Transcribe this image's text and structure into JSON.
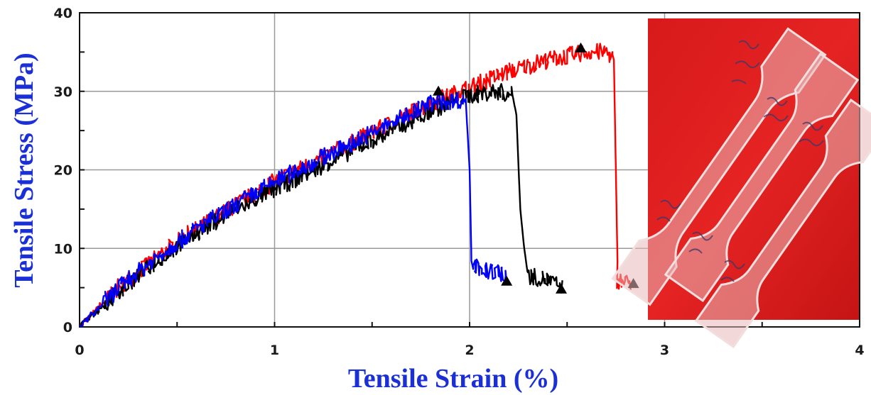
{
  "chart_data": {
    "type": "line",
    "title": "",
    "xlabel": "Tensile Strain (%)",
    "ylabel": "Tensile Stress (MPa)",
    "xlim": [
      0,
      4
    ],
    "ylim": [
      0,
      40
    ],
    "x_ticks": [
      0,
      1,
      2,
      3,
      4
    ],
    "y_ticks": [
      0,
      10,
      20,
      30,
      40
    ],
    "x_tick_labels": [
      "0",
      "1",
      "2",
      "3",
      "4"
    ],
    "y_tick_labels": [
      "0",
      "10",
      "20",
      "30",
      "40"
    ],
    "grid": true,
    "legend": "none",
    "inset": "photograph of three tensile test specimens (dog-bone shaped) on a red background",
    "series": [
      {
        "color": "#ff0000",
        "points": [
          [
            0,
            0
          ],
          [
            0.2,
            5
          ],
          [
            0.4,
            9
          ],
          [
            0.6,
            12.5
          ],
          [
            0.8,
            15.5
          ],
          [
            1.0,
            18.5
          ],
          [
            1.2,
            21
          ],
          [
            1.4,
            23.5
          ],
          [
            1.6,
            26
          ],
          [
            1.8,
            28.5
          ],
          [
            2.0,
            30.5
          ],
          [
            2.2,
            32.5
          ],
          [
            2.4,
            34
          ],
          [
            2.6,
            35
          ],
          [
            2.7,
            35
          ],
          [
            2.74,
            34
          ],
          [
            2.75,
            20
          ],
          [
            2.76,
            6
          ],
          [
            2.82,
            5.5
          ]
        ],
        "break_point": [
          2.84,
          5.5
        ],
        "peak_marker": [
          2.57,
          35.5
        ]
      },
      {
        "color": "#000000",
        "points": [
          [
            0,
            0
          ],
          [
            0.2,
            4.5
          ],
          [
            0.4,
            8.5
          ],
          [
            0.6,
            12
          ],
          [
            0.8,
            15
          ],
          [
            1.0,
            17.5
          ],
          [
            1.2,
            20
          ],
          [
            1.4,
            22.5
          ],
          [
            1.6,
            25
          ],
          [
            1.8,
            27.5
          ],
          [
            2.0,
            29.5
          ],
          [
            2.15,
            30
          ],
          [
            2.22,
            29.5
          ],
          [
            2.24,
            27
          ],
          [
            2.26,
            15
          ],
          [
            2.28,
            10
          ],
          [
            2.3,
            6.5
          ],
          [
            2.4,
            6
          ],
          [
            2.47,
            5
          ]
        ],
        "break_point": [
          2.47,
          4.8
        ],
        "peak_marker": [
          1.84,
          30
        ]
      },
      {
        "color": "#0000ff",
        "points": [
          [
            0,
            0
          ],
          [
            0.2,
            5
          ],
          [
            0.4,
            9
          ],
          [
            0.6,
            12.5
          ],
          [
            0.8,
            15.5
          ],
          [
            1.0,
            18.5
          ],
          [
            1.2,
            21
          ],
          [
            1.4,
            23.5
          ],
          [
            1.6,
            26
          ],
          [
            1.8,
            28.5
          ],
          [
            1.98,
            29
          ],
          [
            2.0,
            20
          ],
          [
            2.01,
            8
          ],
          [
            2.1,
            7
          ],
          [
            2.15,
            7
          ],
          [
            2.19,
            6
          ]
        ],
        "break_point": [
          2.19,
          5.8
        ]
      }
    ]
  }
}
